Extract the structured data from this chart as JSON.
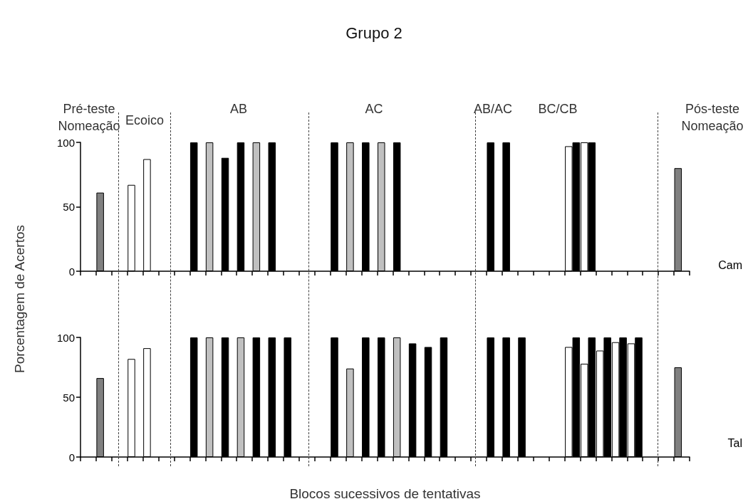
{
  "chart_data": [
    {
      "type": "bar",
      "title": "Grupo 2",
      "ylabel": "Porcentagem de Acertos",
      "ylim": [
        0,
        100
      ],
      "yticks": [
        0,
        50,
        100
      ],
      "tick_labels": "y",
      "grid": false,
      "categories": [
        null,
        null,
        null,
        null,
        null,
        null,
        null,
        null,
        null,
        null,
        null,
        null,
        null,
        null,
        null,
        null,
        null,
        null,
        null,
        null,
        null,
        null,
        null,
        null,
        null,
        null,
        null,
        null,
        null,
        null,
        null,
        null,
        null,
        null,
        null,
        null,
        null,
        null,
        null
      ],
      "series": [
        {
          "values": [
            null,
            61,
            null,
            67,
            87,
            null,
            null,
            100,
            100,
            88,
            100,
            100,
            100,
            null,
            null,
            null,
            100,
            100,
            100,
            100,
            100,
            null,
            null,
            null,
            null,
            null,
            100,
            100,
            null,
            null,
            null,
            97,
            100,
            null,
            null,
            null,
            null,
            null,
            80
          ],
          "colors": [
            null,
            "#808080",
            null,
            "#ffffff",
            "#ffffff",
            null,
            null,
            "#000000",
            "#c0c0c0",
            "#000000",
            "#000000",
            "#c0c0c0",
            "#000000",
            null,
            null,
            null,
            "#000000",
            "#c0c0c0",
            "#000000",
            "#c0c0c0",
            "#000000",
            null,
            null,
            null,
            null,
            null,
            "#000000",
            "#000000",
            null,
            null,
            null,
            "#ffffff",
            "#ffffff",
            null,
            null,
            null,
            null,
            null,
            "#808080"
          ]
        },
        {
          "color": "#000000",
          "values": [
            null,
            null,
            null,
            null,
            null,
            null,
            null,
            null,
            null,
            null,
            null,
            null,
            null,
            null,
            null,
            null,
            null,
            null,
            null,
            null,
            null,
            null,
            null,
            null,
            null,
            null,
            null,
            null,
            null,
            null,
            null,
            100,
            100,
            null,
            null,
            null,
            null,
            null,
            null
          ]
        }
      ],
      "annotations": [
        "Pré-teste\nNomeação",
        "Ecoico",
        "AB",
        "AC",
        "AB/AC",
        "BC/CB",
        "Pós-teste\nNomeação",
        "Cam"
      ]
    },
    {
      "type": "bar",
      "xlabel": "Blocos sucessivos de tentativas",
      "ylim": [
        0,
        100
      ],
      "yticks": [
        0,
        50,
        100
      ],
      "tick_labels": "y",
      "grid": false,
      "categories": [
        null,
        null,
        null,
        null,
        null,
        null,
        null,
        null,
        null,
        null,
        null,
        null,
        null,
        null,
        null,
        null,
        null,
        null,
        null,
        null,
        null,
        null,
        null,
        null,
        null,
        null,
        null,
        null,
        null,
        null,
        null,
        null,
        null,
        null,
        null,
        null,
        null,
        null,
        null
      ],
      "series": [
        {
          "values": [
            null,
            66,
            null,
            82,
            91,
            null,
            null,
            100,
            100,
            100,
            100,
            100,
            100,
            100,
            null,
            null,
            100,
            74,
            100,
            100,
            100,
            95,
            92,
            100,
            null,
            null,
            100,
            100,
            100,
            null,
            null,
            92,
            78,
            89,
            96,
            95,
            null,
            null,
            75
          ],
          "colors": [
            null,
            "#808080",
            null,
            "#ffffff",
            "#ffffff",
            null,
            null,
            "#000000",
            "#c0c0c0",
            "#000000",
            "#c0c0c0",
            "#000000",
            "#000000",
            "#000000",
            null,
            null,
            "#000000",
            "#c0c0c0",
            "#000000",
            "#000000",
            "#c0c0c0",
            "#000000",
            "#000000",
            "#000000",
            null,
            null,
            "#000000",
            "#000000",
            "#000000",
            null,
            null,
            "#ffffff",
            "#ffffff",
            "#ffffff",
            "#ffffff",
            "#ffffff",
            null,
            null,
            "#808080"
          ]
        },
        {
          "color": "#000000",
          "values": [
            null,
            null,
            null,
            null,
            null,
            null,
            null,
            null,
            null,
            null,
            null,
            null,
            null,
            null,
            null,
            null,
            null,
            null,
            null,
            null,
            null,
            null,
            null,
            null,
            null,
            null,
            null,
            null,
            null,
            null,
            null,
            100,
            100,
            100,
            100,
            100,
            null,
            null,
            null
          ]
        }
      ],
      "annotations": [
        "Tal"
      ]
    }
  ]
}
